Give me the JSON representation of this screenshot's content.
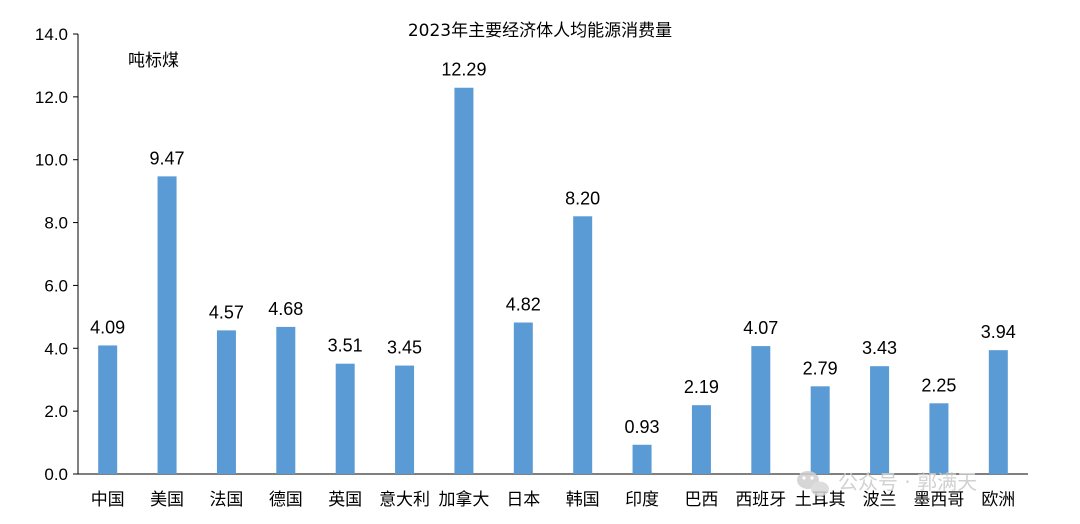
{
  "chart_data": {
    "type": "bar",
    "title": "2023年主要经济体人均能源消费量",
    "unit_label": "吨标煤",
    "categories": [
      "中国",
      "美国",
      "法国",
      "德国",
      "英国",
      "意大利",
      "加拿大",
      "日本",
      "韩国",
      "印度",
      "巴西",
      "西班牙",
      "土耳其",
      "波兰",
      "墨西哥",
      "欧洲"
    ],
    "values": [
      4.09,
      9.47,
      4.57,
      4.68,
      3.51,
      3.45,
      12.29,
      4.82,
      8.2,
      0.93,
      2.19,
      4.07,
      2.79,
      3.43,
      2.25,
      3.94
    ],
    "value_labels": [
      "4.09",
      "9.47",
      "4.57",
      "4.68",
      "3.51",
      "3.45",
      "12.29",
      "4.82",
      "8.20",
      "0.93",
      "2.19",
      "4.07",
      "2.79",
      "3.43",
      "2.25",
      "3.94"
    ],
    "ylim": [
      0,
      14
    ],
    "yticks": [
      "0.0",
      "2.0",
      "4.0",
      "6.0",
      "8.0",
      "10.0",
      "12.0",
      "14.0"
    ],
    "bar_color": "#5b9bd5",
    "grid": false,
    "legend": "none"
  },
  "watermark": {
    "text": "公众号 · 郭满天",
    "icon": "wechat-icon"
  }
}
